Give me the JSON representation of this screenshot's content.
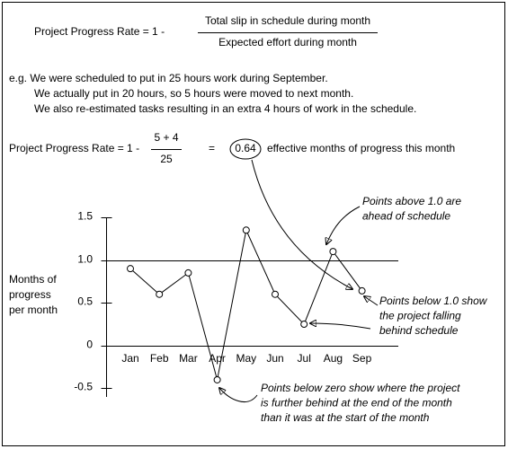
{
  "formula": {
    "lhs": "Project Progress Rate  =  1  -",
    "numerator": "Total slip in schedule during month",
    "denominator": "Expected effort during month"
  },
  "example": {
    "lines": [
      "e.g. We were scheduled to put in 25 hours work during September.",
      "We actually put in 20 hours, so 5 hours were moved to next month.",
      "We also re-estimated tasks resulting in an extra 4 hours of work in the schedule."
    ],
    "lhs": "Project Progress Rate  =  1  -",
    "numerator": "5 + 4",
    "denominator": "25",
    "equals": "=",
    "result": "0.64",
    "result_text": "effective months of progress this month"
  },
  "chart_data": {
    "type": "line",
    "y_label": [
      "Months of",
      "progress",
      "per month"
    ],
    "categories": [
      "Jan",
      "Feb",
      "Mar",
      "Apr",
      "May",
      "Jun",
      "Jul",
      "Aug",
      "Sep"
    ],
    "values": [
      0.9,
      0.6,
      0.85,
      -0.4,
      1.35,
      0.6,
      0.25,
      1.1,
      0.64
    ],
    "color": "#000000",
    "ylim": [
      -0.6,
      1.5
    ],
    "yticks": [
      -0.5,
      0,
      0.5,
      {
        "value": 1,
        "label": "1.0"
      },
      1.5
    ],
    "hlines": [
      1,
      0
    ],
    "annotations": {
      "above": [
        "Points above 1.0 are",
        "ahead of schedule"
      ],
      "below": [
        "Points below 1.0 show",
        "the project falling",
        "behind schedule"
      ],
      "zero": [
        "Points below zero show where  the project",
        "is further behind at the end of the month",
        "than it was at the start of the month"
      ]
    }
  }
}
